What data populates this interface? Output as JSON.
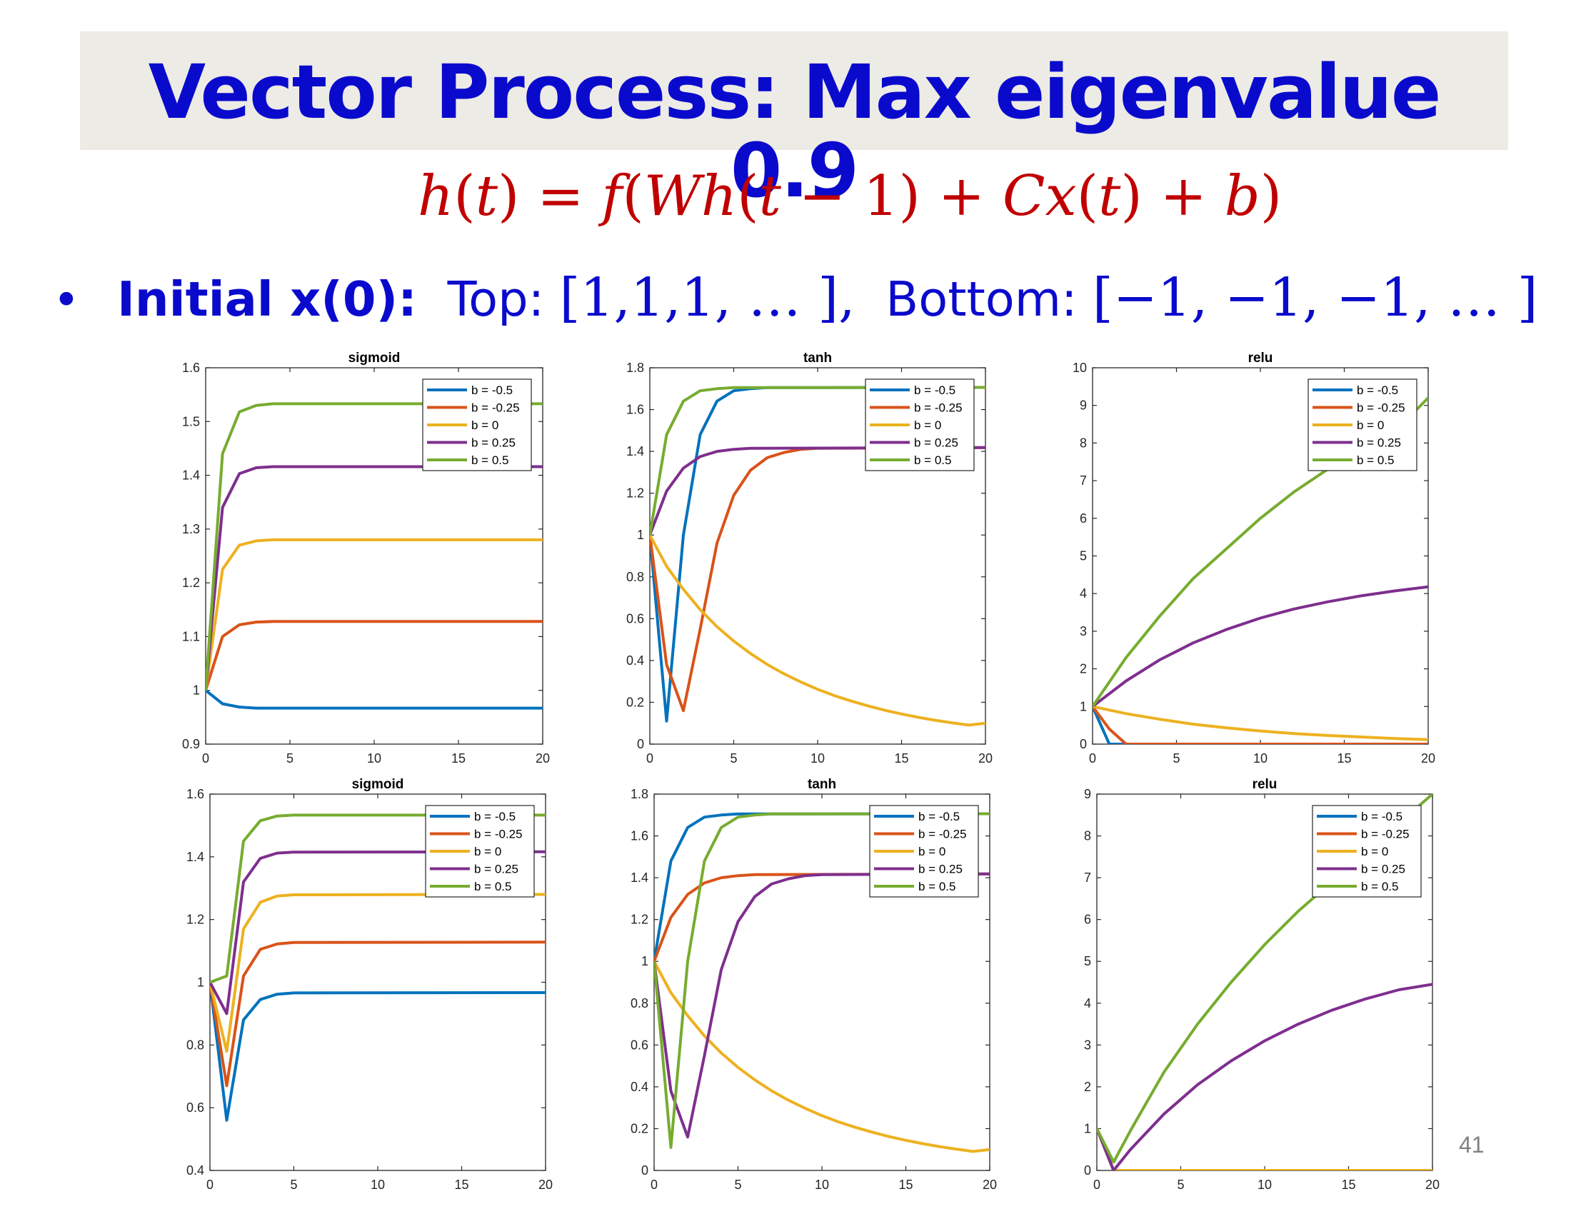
{
  "slide": {
    "title": "Vector Process: Max eigenvalue 0.9",
    "equation": {
      "h": "h",
      "lp1": "(",
      "t1": "t",
      "rp1": ")",
      "eq": " = ",
      "f": "f",
      "lp2": "(",
      "W": "W",
      "h2": "h",
      "lp3": "(",
      "t2": "t",
      "minus1": " − 1) + ",
      "C": "C",
      "x": "x",
      "lp4": "(",
      "t3": "t",
      "rp4": ") + ",
      "b": "b",
      "rp2": ")"
    },
    "bullet": {
      "label": "Initial x(0):",
      "top_label": "Top: ",
      "top_vector": "[1,1,1, … ],",
      "bottom_label": "Bottom: ",
      "bottom_vector": "[−1, −1, −1, … ]"
    },
    "page_number": "41"
  },
  "colors": {
    "title": "#0a0acd",
    "equation": "#c00000",
    "series": [
      "#0072bd",
      "#d95319",
      "#edb120",
      "#7e2f8e",
      "#77ac30"
    ]
  },
  "chart_data": [
    {
      "type": "line",
      "title": "sigmoid",
      "ylim": [
        0.9,
        1.6
      ],
      "yticks": [
        0.9,
        1,
        1.1,
        1.2,
        1.3,
        1.4,
        1.5,
        1.6
      ],
      "ytick_labels": [
        "0.9",
        "1",
        "1.1",
        "1.2",
        "1.3",
        "1.4",
        "1.5",
        "1.6"
      ],
      "xlim": [
        0,
        20
      ],
      "xticks": [
        0,
        5,
        10,
        15,
        20
      ],
      "xtick_labels": [
        "0",
        "5",
        "10",
        "15",
        "20"
      ],
      "legend": "top-right",
      "series": [
        {
          "name": "b = -0.5",
          "x": [
            0,
            1,
            2,
            3,
            4,
            20
          ],
          "y": [
            1.0,
            0.975,
            0.969,
            0.967,
            0.967,
            0.967
          ]
        },
        {
          "name": "b = -0.25",
          "x": [
            0,
            1,
            2,
            3,
            4,
            20
          ],
          "y": [
            1.0,
            1.1,
            1.122,
            1.127,
            1.128,
            1.128
          ]
        },
        {
          "name": "b = 0",
          "x": [
            0,
            1,
            2,
            3,
            4,
            20
          ],
          "y": [
            1.0,
            1.225,
            1.27,
            1.278,
            1.28,
            1.28
          ]
        },
        {
          "name": "b = 0.25",
          "x": [
            0,
            1,
            2,
            3,
            4,
            20
          ],
          "y": [
            1.0,
            1.34,
            1.403,
            1.414,
            1.416,
            1.416
          ]
        },
        {
          "name": "b = 0.5",
          "x": [
            0,
            1,
            2,
            3,
            4,
            20
          ],
          "y": [
            1.0,
            1.44,
            1.518,
            1.53,
            1.533,
            1.533
          ]
        }
      ]
    },
    {
      "type": "line",
      "title": "tanh",
      "ylim": [
        0,
        1.8
      ],
      "yticks": [
        0,
        0.2,
        0.4,
        0.6,
        0.8,
        1,
        1.2,
        1.4,
        1.6,
        1.8
      ],
      "ytick_labels": [
        "0",
        "0.2",
        "0.4",
        "0.6",
        "0.8",
        "1",
        "1.2",
        "1.4",
        "1.6",
        "1.8"
      ],
      "xlim": [
        0,
        20
      ],
      "xticks": [
        0,
        5,
        10,
        15,
        20
      ],
      "xtick_labels": [
        "0",
        "5",
        "10",
        "15",
        "20"
      ],
      "legend": "top-right",
      "series": [
        {
          "name": "b = -0.5",
          "x": [
            0,
            1,
            2,
            3,
            4,
            5,
            6,
            7,
            20
          ],
          "y": [
            1.0,
            0.11,
            1.0,
            1.48,
            1.64,
            1.69,
            1.7,
            1.705,
            1.706
          ]
        },
        {
          "name": "b = -0.25",
          "x": [
            0,
            1,
            2,
            3,
            4,
            5,
            6,
            7,
            8,
            9,
            10,
            20
          ],
          "y": [
            1.0,
            0.38,
            0.16,
            0.55,
            0.96,
            1.19,
            1.31,
            1.37,
            1.395,
            1.41,
            1.415,
            1.418
          ]
        },
        {
          "name": "b = 0",
          "x": [
            0,
            1,
            2,
            3,
            4,
            5,
            6,
            7,
            8,
            9,
            10,
            11,
            12,
            13,
            14,
            15,
            16,
            17,
            18,
            19,
            20
          ],
          "y": [
            1.0,
            0.85,
            0.74,
            0.643,
            0.562,
            0.493,
            0.433,
            0.381,
            0.336,
            0.297,
            0.262,
            0.232,
            0.206,
            0.183,
            0.162,
            0.144,
            0.128,
            0.114,
            0.102,
            0.091,
            0.1
          ]
        },
        {
          "name": "b = 0.25",
          "x": [
            0,
            1,
            2,
            3,
            4,
            5,
            6,
            20
          ],
          "y": [
            1.0,
            1.21,
            1.32,
            1.375,
            1.4,
            1.41,
            1.415,
            1.418
          ]
        },
        {
          "name": "b = 0.5",
          "x": [
            0,
            1,
            2,
            3,
            4,
            5,
            20
          ],
          "y": [
            1.0,
            1.48,
            1.64,
            1.69,
            1.7,
            1.705,
            1.706
          ]
        }
      ]
    },
    {
      "type": "line",
      "title": "relu",
      "ylim": [
        0,
        10
      ],
      "yticks": [
        0,
        1,
        2,
        3,
        4,
        5,
        6,
        7,
        8,
        9,
        10
      ],
      "ytick_labels": [
        "0",
        "1",
        "2",
        "3",
        "4",
        "5",
        "6",
        "7",
        "8",
        "9",
        "10"
      ],
      "xlim": [
        0,
        20
      ],
      "xticks": [
        0,
        5,
        10,
        15,
        20
      ],
      "xtick_labels": [
        "0",
        "5",
        "10",
        "15",
        "20"
      ],
      "legend": "top-right",
      "series": [
        {
          "name": "b = -0.5",
          "x": [
            0,
            1,
            2,
            20
          ],
          "y": [
            1.0,
            0.0,
            0.0,
            0.0
          ]
        },
        {
          "name": "b = -0.25",
          "x": [
            0,
            1,
            2,
            20
          ],
          "y": [
            1.0,
            0.4,
            0.0,
            0.0
          ]
        },
        {
          "name": "b = 0",
          "x": [
            0,
            2,
            4,
            6,
            8,
            10,
            12,
            14,
            16,
            18,
            20
          ],
          "y": [
            1.0,
            0.81,
            0.66,
            0.53,
            0.43,
            0.35,
            0.28,
            0.23,
            0.19,
            0.15,
            0.12
          ]
        },
        {
          "name": "b = 0.25",
          "x": [
            0,
            2,
            4,
            6,
            8,
            10,
            12,
            14,
            16,
            18,
            20
          ],
          "y": [
            1.0,
            1.68,
            2.24,
            2.69,
            3.05,
            3.35,
            3.59,
            3.78,
            3.94,
            4.07,
            4.18
          ]
        },
        {
          "name": "b = 0.5",
          "x": [
            0,
            2,
            4,
            6,
            8,
            10,
            12,
            14,
            16,
            18,
            20
          ],
          "y": [
            1.0,
            2.3,
            3.4,
            4.4,
            5.2,
            6.0,
            6.7,
            7.3,
            7.8,
            8.3,
            9.2
          ]
        }
      ]
    },
    {
      "type": "line",
      "title": "sigmoid",
      "ylim": [
        0.4,
        1.6
      ],
      "yticks": [
        0.4,
        0.6,
        0.8,
        1,
        1.2,
        1.4,
        1.6
      ],
      "ytick_labels": [
        "0.4",
        "0.6",
        "0.8",
        "1",
        "1.2",
        "1.4",
        "1.6"
      ],
      "xlim": [
        0,
        20
      ],
      "xticks": [
        0,
        5,
        10,
        15,
        20
      ],
      "xtick_labels": [
        "0",
        "5",
        "10",
        "15",
        "20"
      ],
      "legend": "top-right",
      "series": [
        {
          "name": "b = -0.5",
          "x": [
            0,
            1,
            2,
            3,
            4,
            5,
            20
          ],
          "y": [
            1.0,
            0.56,
            0.88,
            0.945,
            0.962,
            0.966,
            0.967
          ]
        },
        {
          "name": "b = -0.25",
          "x": [
            0,
            1,
            2,
            3,
            4,
            5,
            20
          ],
          "y": [
            1.0,
            0.67,
            1.02,
            1.105,
            1.122,
            1.127,
            1.128
          ]
        },
        {
          "name": "b = 0",
          "x": [
            0,
            1,
            2,
            3,
            4,
            5,
            20
          ],
          "y": [
            1.0,
            0.78,
            1.17,
            1.255,
            1.275,
            1.279,
            1.28
          ]
        },
        {
          "name": "b = 0.25",
          "x": [
            0,
            1,
            2,
            3,
            4,
            5,
            20
          ],
          "y": [
            1.0,
            0.9,
            1.32,
            1.395,
            1.412,
            1.415,
            1.416
          ]
        },
        {
          "name": "b = 0.5",
          "x": [
            0,
            1,
            2,
            3,
            4,
            5,
            20
          ],
          "y": [
            1.0,
            1.02,
            1.45,
            1.515,
            1.53,
            1.533,
            1.533
          ]
        }
      ]
    },
    {
      "type": "line",
      "title": "tanh",
      "ylim": [
        0,
        1.8
      ],
      "yticks": [
        0,
        0.2,
        0.4,
        0.6,
        0.8,
        1,
        1.2,
        1.4,
        1.6,
        1.8
      ],
      "ytick_labels": [
        "0",
        "0.2",
        "0.4",
        "0.6",
        "0.8",
        "1",
        "1.2",
        "1.4",
        "1.6",
        "1.8"
      ],
      "xlim": [
        0,
        20
      ],
      "xticks": [
        0,
        5,
        10,
        15,
        20
      ],
      "xtick_labels": [
        "0",
        "5",
        "10",
        "15",
        "20"
      ],
      "legend": "top-right",
      "series": [
        {
          "name": "b = -0.5",
          "x": [
            0,
            1,
            2,
            3,
            4,
            5,
            20
          ],
          "y": [
            1.0,
            1.48,
            1.64,
            1.69,
            1.7,
            1.705,
            1.706
          ]
        },
        {
          "name": "b = -0.25",
          "x": [
            0,
            1,
            2,
            3,
            4,
            5,
            6,
            20
          ],
          "y": [
            1.0,
            1.21,
            1.32,
            1.375,
            1.4,
            1.41,
            1.415,
            1.418
          ]
        },
        {
          "name": "b = 0",
          "x": [
            0,
            1,
            2,
            3,
            4,
            5,
            6,
            7,
            8,
            9,
            10,
            11,
            12,
            13,
            14,
            15,
            16,
            17,
            18,
            19,
            20
          ],
          "y": [
            1.0,
            0.85,
            0.74,
            0.643,
            0.562,
            0.493,
            0.433,
            0.381,
            0.336,
            0.297,
            0.262,
            0.232,
            0.206,
            0.183,
            0.162,
            0.144,
            0.128,
            0.114,
            0.102,
            0.091,
            0.1
          ]
        },
        {
          "name": "b = 0.25",
          "x": [
            0,
            1,
            2,
            3,
            4,
            5,
            6,
            7,
            8,
            9,
            10,
            20
          ],
          "y": [
            1.0,
            0.38,
            0.16,
            0.55,
            0.96,
            1.19,
            1.31,
            1.37,
            1.395,
            1.41,
            1.415,
            1.418
          ]
        },
        {
          "name": "b = 0.5",
          "x": [
            0,
            1,
            2,
            3,
            4,
            5,
            6,
            7,
            20
          ],
          "y": [
            1.0,
            0.11,
            1.0,
            1.48,
            1.64,
            1.69,
            1.7,
            1.705,
            1.706
          ]
        }
      ]
    },
    {
      "type": "line",
      "title": "relu",
      "ylim": [
        0,
        9
      ],
      "yticks": [
        0,
        1,
        2,
        3,
        4,
        5,
        6,
        7,
        8,
        9
      ],
      "ytick_labels": [
        "0",
        "1",
        "2",
        "3",
        "4",
        "5",
        "6",
        "7",
        "8",
        "9"
      ],
      "xlim": [
        0,
        20
      ],
      "xticks": [
        0,
        5,
        10,
        15,
        20
      ],
      "xtick_labels": [
        "0",
        "5",
        "10",
        "15",
        "20"
      ],
      "legend": "top-right",
      "series": [
        {
          "name": "b = -0.5",
          "x": [
            0,
            1,
            20
          ],
          "y": [
            1.0,
            0.0,
            0.0
          ]
        },
        {
          "name": "b = -0.25",
          "x": [
            0,
            1,
            20
          ],
          "y": [
            1.0,
            0.0,
            0.0
          ]
        },
        {
          "name": "b = 0",
          "x": [
            0,
            1,
            20
          ],
          "y": [
            1.0,
            0.0,
            0.0
          ]
        },
        {
          "name": "b = 0.25",
          "x": [
            0,
            1,
            2,
            4,
            6,
            8,
            10,
            12,
            14,
            16,
            18,
            20
          ],
          "y": [
            1.0,
            0.0,
            0.5,
            1.35,
            2.05,
            2.62,
            3.1,
            3.5,
            3.83,
            4.1,
            4.32,
            4.45
          ]
        },
        {
          "name": "b = 0.5",
          "x": [
            0,
            1,
            2,
            4,
            6,
            8,
            10,
            12,
            14,
            16,
            18,
            20
          ],
          "y": [
            1.0,
            0.2,
            0.95,
            2.35,
            3.5,
            4.5,
            5.4,
            6.2,
            6.9,
            7.5,
            8.3,
            9.0
          ]
        }
      ]
    }
  ]
}
